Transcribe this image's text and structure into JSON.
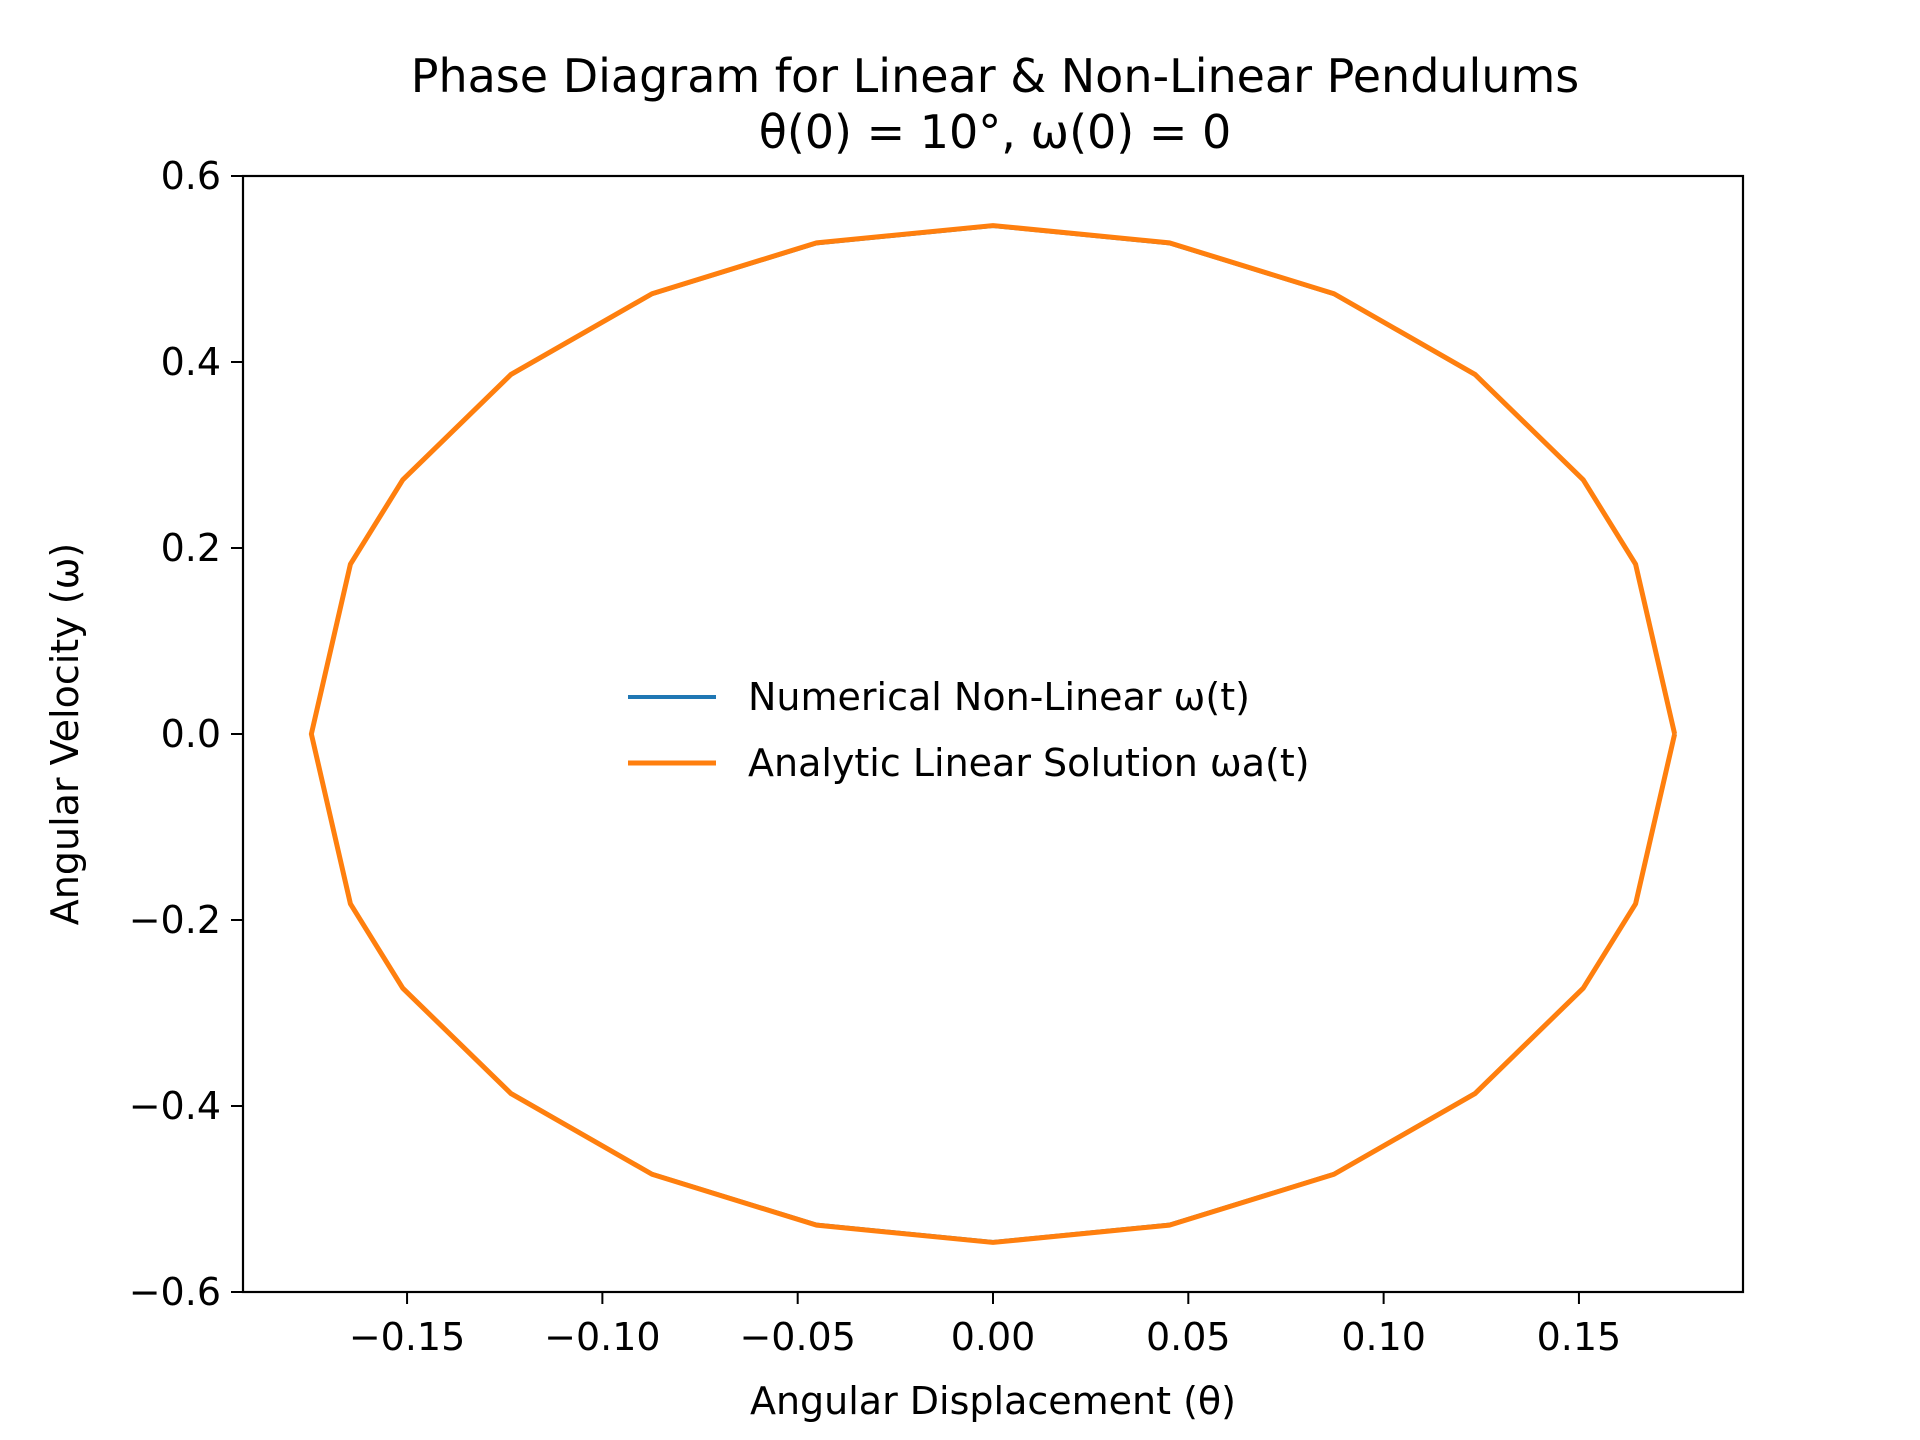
{
  "chart_data": {
    "type": "line",
    "title": "Phase Diagram for Linear & Non-Linear Pendulums",
    "subtitle": "θ(0) = 10°, ω(0) = 0",
    "xlabel": "Angular Displacement (θ)",
    "ylabel": "Angular Velocity (ω)",
    "xlim": [
      -0.192,
      0.192
    ],
    "ylim": [
      -0.6,
      0.6
    ],
    "xticks": [
      -0.15,
      -0.1,
      -0.05,
      0.0,
      0.05,
      0.1,
      0.15
    ],
    "xtick_labels": [
      "−0.15",
      "−0.10",
      "−0.05",
      "0.00",
      "0.05",
      "0.10",
      "0.15"
    ],
    "yticks": [
      -0.6,
      -0.4,
      -0.2,
      0.0,
      0.2,
      0.4,
      0.6
    ],
    "ytick_labels": [
      "−0.6",
      "−0.4",
      "−0.2",
      "0.0",
      "0.2",
      "0.4",
      "0.6"
    ],
    "grid": false,
    "legend_position": "center",
    "series": [
      {
        "name": "Numerical Non-Linear  ω(t)",
        "color": "#1f77b4",
        "x": [
          0.1745,
          0.1645,
          0.1511,
          0.1234,
          0.0873,
          0.0452,
          0.0,
          -0.0452,
          -0.0873,
          -0.1234,
          -0.1511,
          -0.1645,
          -0.1745,
          -0.1645,
          -0.1511,
          -0.1234,
          -0.0873,
          -0.0452,
          0.0,
          0.0452,
          0.0873,
          0.1234,
          0.1511,
          0.1645,
          0.1745
        ],
        "y": [
          0.0,
          -0.1825,
          -0.273,
          -0.3862,
          -0.473,
          -0.5276,
          -0.5462,
          -0.5276,
          -0.473,
          -0.3862,
          -0.273,
          -0.1825,
          0.0,
          0.1825,
          0.273,
          0.3862,
          0.473,
          0.5276,
          0.5462,
          0.5276,
          0.473,
          0.3862,
          0.273,
          0.1825,
          0.0
        ]
      },
      {
        "name": "Analytic Linear Solution ωa(t)",
        "color": "#ff7f0e",
        "x": [
          0.1745,
          0.1645,
          0.1511,
          0.1234,
          0.0873,
          0.0452,
          0.0,
          -0.0452,
          -0.0873,
          -0.1234,
          -0.1511,
          -0.1645,
          -0.1745,
          -0.1645,
          -0.1511,
          -0.1234,
          -0.0873,
          -0.0452,
          0.0,
          0.0452,
          0.0873,
          0.1234,
          0.1511,
          0.1645,
          0.1745
        ],
        "y": [
          0.0,
          -0.1826,
          -0.2733,
          -0.3866,
          -0.4734,
          -0.5281,
          -0.5467,
          -0.5281,
          -0.4734,
          -0.3866,
          -0.2733,
          -0.1826,
          0.0,
          0.1826,
          0.2733,
          0.3866,
          0.4734,
          0.5281,
          0.5467,
          0.5281,
          0.4734,
          0.3866,
          0.2733,
          0.1826,
          0.0
        ]
      }
    ]
  }
}
